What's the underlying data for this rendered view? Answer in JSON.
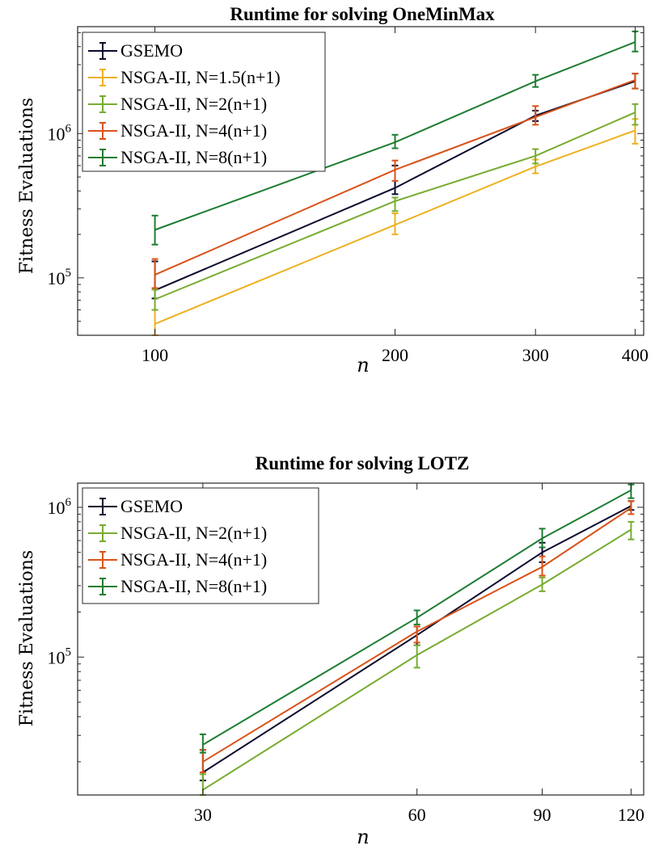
{
  "chart_data": [
    {
      "type": "line",
      "title": "Runtime for solving OneMinMax",
      "xlabel": "n",
      "ylabel": "Fitness Evaluations",
      "x": [
        100,
        200,
        300,
        400
      ],
      "x_tick_labels": [
        "100",
        "200",
        "300",
        "400"
      ],
      "xlim": [
        80,
        410
      ],
      "x_scale": "log",
      "ylim": [
        40000,
        5500000
      ],
      "y_scale": "log",
      "y_tick_labels": [
        {
          "mantissa": "10",
          "exponent": "5",
          "value": 100000
        },
        {
          "mantissa": "10",
          "exponent": "6",
          "value": 1000000
        }
      ],
      "grid": false,
      "error_bars": true,
      "legend_position": "top-left",
      "series": [
        {
          "name": "GSEMO",
          "color": "#0a0a2e",
          "values": [
            82000,
            420000,
            1330000,
            2300000
          ],
          "err_low": [
            72000,
            380000,
            1220000,
            2050000
          ],
          "err_high": [
            130000,
            600000,
            1440000,
            2600000
          ]
        },
        {
          "name": "NSGA-II, N=1.5(n+1)",
          "color": "#edb120",
          "values": [
            48000,
            233000,
            590000,
            1050000
          ],
          "err_low": [
            40000,
            200000,
            530000,
            850000
          ],
          "err_high": [
            60000,
            280000,
            660000,
            1260000
          ]
        },
        {
          "name": "NSGA-II, N=2(n+1)",
          "color": "#77ac30",
          "values": [
            71000,
            340000,
            700000,
            1400000
          ],
          "err_low": [
            60000,
            290000,
            620000,
            1150000
          ],
          "err_high": [
            83000,
            360000,
            780000,
            1600000
          ]
        },
        {
          "name": "NSGA-II, N=4(n+1)",
          "color": "#d95319",
          "values": [
            105000,
            560000,
            1300000,
            2350000
          ],
          "err_low": [
            85000,
            470000,
            1150000,
            2050000
          ],
          "err_high": [
            135000,
            650000,
            1550000,
            2600000
          ]
        },
        {
          "name": "NSGA-II, N=8(n+1)",
          "color": "#1e7d32",
          "values": [
            215000,
            870000,
            2300000,
            4300000
          ],
          "err_low": [
            170000,
            790000,
            2100000,
            3700000
          ],
          "err_high": [
            270000,
            980000,
            2550000,
            5100000
          ]
        }
      ]
    },
    {
      "type": "line",
      "title": "Runtime for solving LOTZ",
      "xlabel": "n",
      "ylabel": "Fitness Evaluations",
      "x": [
        30,
        60,
        90,
        120
      ],
      "x_tick_labels": [
        "30",
        "60",
        "90",
        "120"
      ],
      "xlim": [
        20,
        125
      ],
      "x_scale": "log",
      "ylim": [
        12000,
        1450000
      ],
      "y_scale": "log",
      "y_tick_labels": [
        {
          "mantissa": "10",
          "exponent": "5",
          "value": 100000
        },
        {
          "mantissa": "10",
          "exponent": "6",
          "value": 1000000
        }
      ],
      "grid": false,
      "error_bars": true,
      "legend_position": "top-left",
      "series": [
        {
          "name": "GSEMO",
          "color": "#0a0a2e",
          "values": [
            17000,
            140000,
            500000,
            1020000
          ],
          "err_low": [
            15000,
            120000,
            430000,
            960000
          ],
          "err_high": [
            24000,
            160000,
            580000,
            1100000
          ]
        },
        {
          "name": "NSGA-II, N=2(n+1)",
          "color": "#77ac30",
          "values": [
            13000,
            103000,
            305000,
            710000
          ],
          "err_low": [
            12000,
            85000,
            275000,
            610000
          ],
          "err_high": [
            16500,
            120000,
            340000,
            800000
          ]
        },
        {
          "name": "NSGA-II, N=4(n+1)",
          "color": "#d95319",
          "values": [
            20000,
            148000,
            400000,
            990000
          ],
          "err_low": [
            17000,
            125000,
            350000,
            900000
          ],
          "err_high": [
            24000,
            160000,
            470000,
            1100000
          ]
        },
        {
          "name": "NSGA-II, N=8(n+1)",
          "color": "#1e7d32",
          "values": [
            26000,
            183000,
            620000,
            1300000
          ],
          "err_low": [
            23000,
            165000,
            540000,
            1150000
          ],
          "err_high": [
            30500,
            205000,
            720000,
            1420000
          ]
        }
      ]
    }
  ]
}
